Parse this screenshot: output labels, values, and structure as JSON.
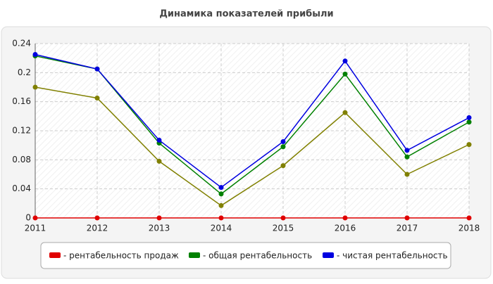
{
  "chart_data": {
    "type": "line",
    "title": "Динамика показателей прибыли",
    "x": [
      2011,
      2012,
      2013,
      2014,
      2015,
      2016,
      2017,
      2018
    ],
    "xlim": [
      2011,
      2018
    ],
    "xticks": [
      2011,
      2012,
      2013,
      2014,
      2015,
      2016,
      2017,
      2018
    ],
    "ylim": [
      0,
      0.24
    ],
    "yticks": [
      0,
      0.04,
      0.08,
      0.12,
      0.16,
      0.2,
      0.24
    ],
    "grid": true,
    "legend": "bottom",
    "series": [
      {
        "color": "#808000",
        "values": [
          0.18,
          0.165,
          0.078,
          0.017,
          0.072,
          0.145,
          0.06,
          0.101
        ]
      },
      {
        "name": "- рентабельность продаж",
        "color": "#e00000",
        "values": [
          0,
          0,
          0,
          0,
          0,
          0,
          0,
          0
        ]
      },
      {
        "name": "- общая рентабельность",
        "color": "#008000",
        "values": [
          0.223,
          0.205,
          0.103,
          0.033,
          0.098,
          0.198,
          0.084,
          0.132
        ]
      },
      {
        "name": "- чистая рентабельность",
        "color": "#0000e0",
        "values": [
          0.225,
          0.205,
          0.107,
          0.042,
          0.105,
          0.216,
          0.093,
          0.138
        ]
      }
    ]
  }
}
